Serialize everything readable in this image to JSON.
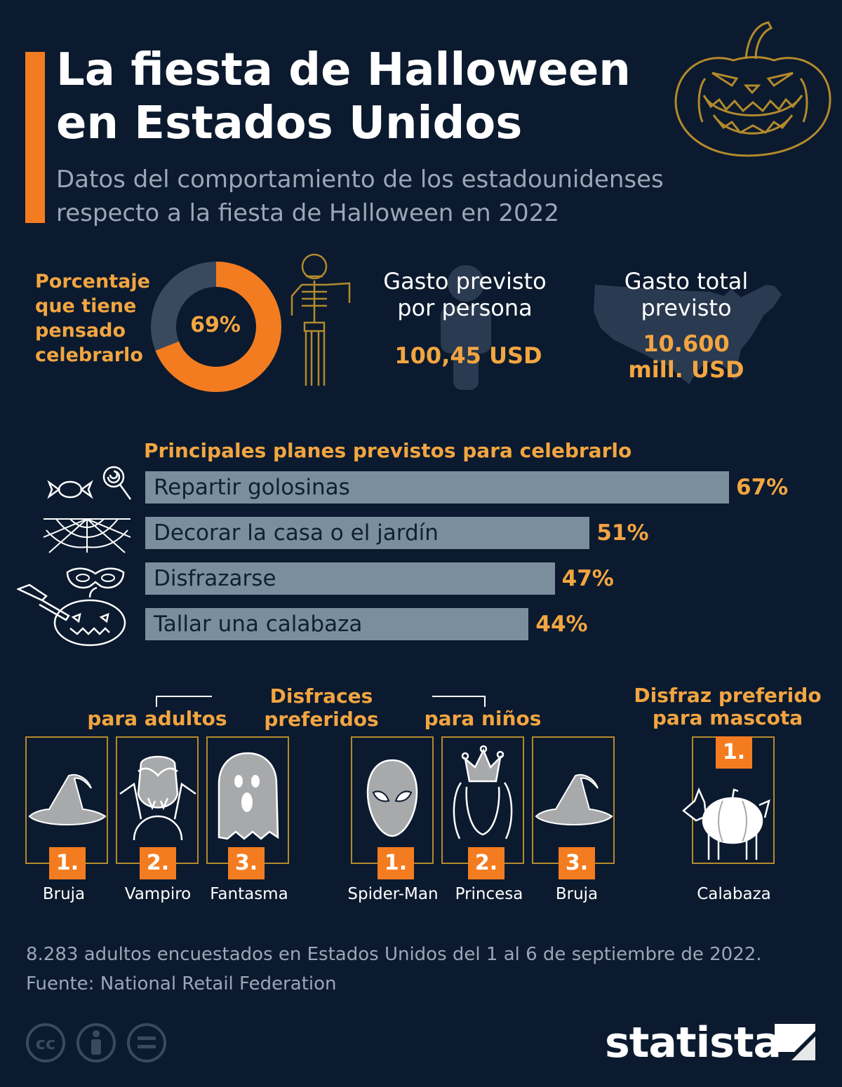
{
  "header": {
    "title_line1": "La fiesta de Halloween",
    "title_line2": "en Estados Unidos",
    "subtitle_line1": "Datos del comportamiento de los estadounidenses",
    "subtitle_line2": "respecto a la fiesta de Halloween en 2022"
  },
  "stats": {
    "celebrate_label_lines": [
      "Porcentaje",
      "que tiene",
      "pensado",
      "celebrarlo"
    ],
    "celebrate_percent": 69,
    "celebrate_value": "69%",
    "spend_person_label_line1": "Gasto previsto",
    "spend_person_label_line2": "por persona",
    "spend_person_value": "100,45 USD",
    "spend_total_label_line1": "Gasto total",
    "spend_total_label_line2": "previsto",
    "spend_total_value_line1": "10.600",
    "spend_total_value_line2": "mill. USD"
  },
  "chart_data": {
    "type": "bar",
    "orientation": "horizontal",
    "title": "Principales planes previstos para celebrarlo",
    "categories": [
      "Repartir golosinas",
      "Decorar la casa o el jardín",
      "Disfrazarse",
      "Tallar una calabaza"
    ],
    "values": [
      67,
      51,
      47,
      44
    ],
    "value_labels": [
      "67%",
      "51%",
      "47%",
      "44%"
    ],
    "icons": [
      "candy-icon",
      "spider-web-icon",
      "mask-icon",
      "pumpkin-knife-icon"
    ],
    "xlim": [
      0,
      67
    ],
    "bar_color": "#7b8e9e",
    "value_color": "#f2a541"
  },
  "costumes": {
    "heading": "Disfraces preferidos",
    "adults_label": "para adultos",
    "kids_label": "para niños",
    "pet_heading_line1": "Disfraz preferido",
    "pet_heading_line2": "para mascota",
    "adults": [
      {
        "rank": "1.",
        "name": "Bruja",
        "icon": "witch-hat-icon"
      },
      {
        "rank": "2.",
        "name": "Vampiro",
        "icon": "vampire-icon"
      },
      {
        "rank": "3.",
        "name": "Fantasma",
        "icon": "ghost-icon"
      }
    ],
    "kids": [
      {
        "rank": "1.",
        "name": "Spider-Man",
        "icon": "spiderman-icon"
      },
      {
        "rank": "2.",
        "name": "Princesa",
        "icon": "princess-icon"
      },
      {
        "rank": "3.",
        "name": "Bruja",
        "icon": "witch-hat-icon"
      }
    ],
    "pet": {
      "rank": "1.",
      "name": "Calabaza",
      "icon": "dog-pumpkin-icon"
    }
  },
  "footer": {
    "note": "8.283 adultos encuestados en Estados Unidos del 1 al 6 de septiembre de 2022.",
    "source": "Fuente: National Retail Federation",
    "brand": "statista"
  },
  "colors": {
    "background": "#0b1a2e",
    "accent_orange": "#f47c20",
    "gold_text": "#f2a541",
    "muted_text": "#9aa7b8",
    "bar": "#7b8e9e",
    "donut_track": "#3a4a5e"
  }
}
